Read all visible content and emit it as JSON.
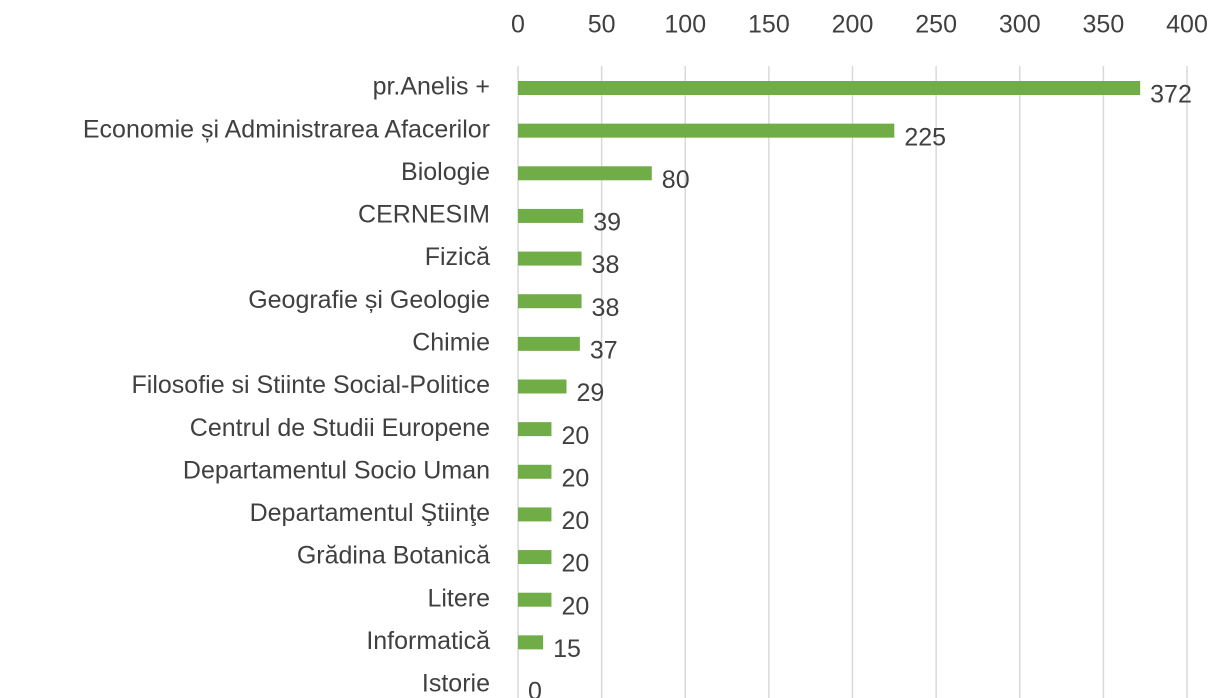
{
  "chart_data": {
    "type": "bar",
    "orientation": "horizontal",
    "categories": [
      "pr.Anelis +",
      "Economie și Administrarea Afacerilor",
      "Biologie",
      "CERNESIM",
      "Fizică",
      "Geografie și Geologie",
      "Chimie",
      "Filosofie si Stiinte Social-Politice",
      "Centrul de Studii Europene",
      "Departamentul Socio Uman",
      "Departamentul Ştiinţe",
      "Grădina Botanică",
      "Litere",
      "Informatică",
      "Istorie"
    ],
    "values": [
      372,
      225,
      80,
      39,
      38,
      38,
      37,
      29,
      20,
      20,
      20,
      20,
      20,
      15,
      0
    ],
    "color": "#70ad47",
    "xlim": [
      0,
      400
    ],
    "xticks": [
      0,
      50,
      100,
      150,
      200,
      250,
      300,
      350,
      400
    ],
    "grid": true,
    "data_labels": true
  }
}
